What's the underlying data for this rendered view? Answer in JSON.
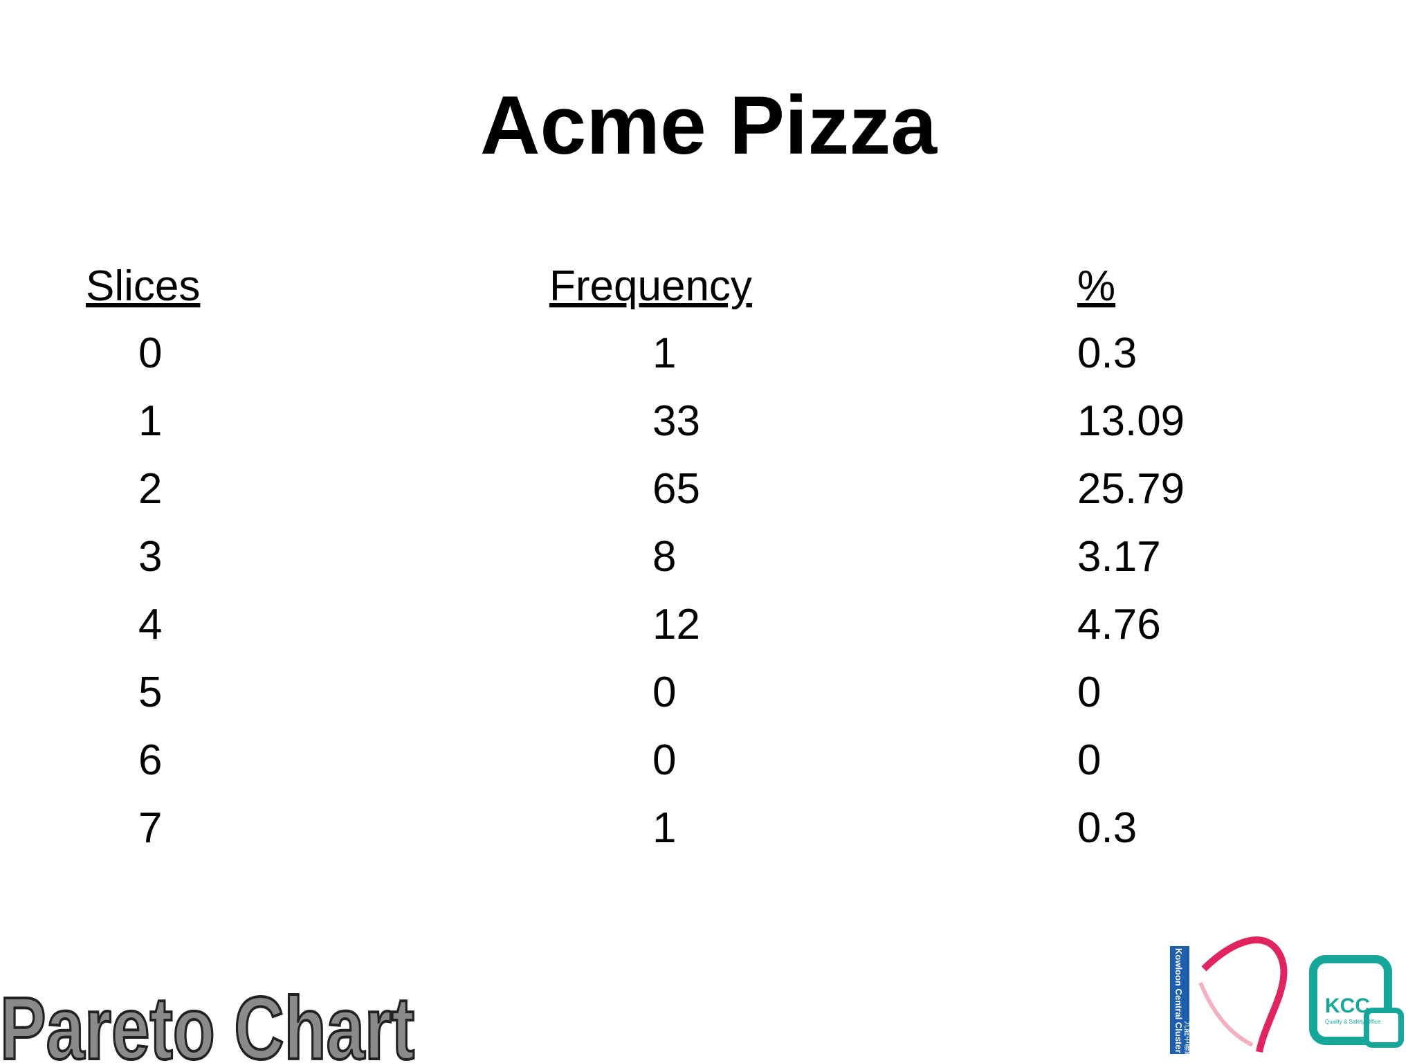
{
  "title": "Acme Pizza",
  "table": {
    "headers": [
      "Slices",
      "Frequency",
      "%"
    ],
    "rows": [
      [
        0,
        1,
        0.3
      ],
      [
        1,
        33,
        13.09
      ],
      [
        2,
        65,
        25.79
      ],
      [
        3,
        8,
        3.17
      ],
      [
        4,
        12,
        4.76
      ],
      [
        5,
        0,
        0
      ],
      [
        6,
        0,
        0
      ],
      [
        7,
        1,
        0.3
      ]
    ]
  },
  "footer": {
    "label": "Pareto Chart",
    "logo_left": {
      "text": "Kowloon Central Cluster",
      "chinese": "九龍中聯網"
    },
    "logo_right": {
      "text": "KCC",
      "subtitle": "Quality & Safety Office"
    }
  }
}
